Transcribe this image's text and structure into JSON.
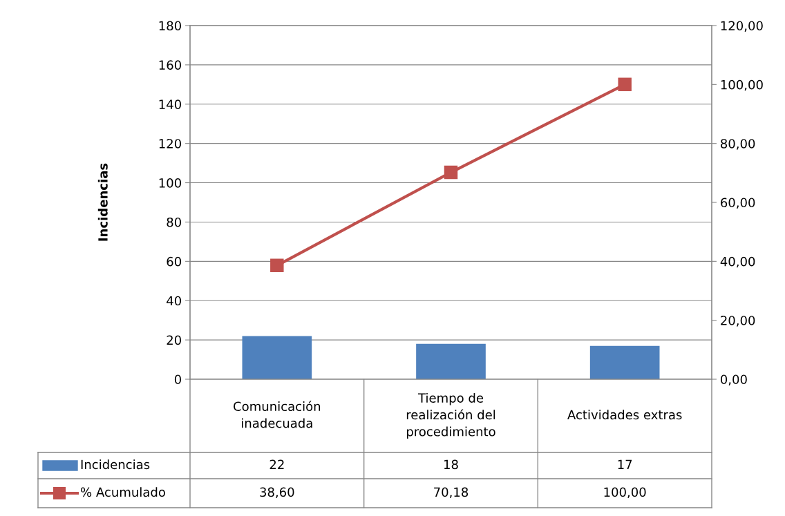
{
  "chart_data": {
    "type": "bar",
    "ylabel": "Incidencias",
    "categories": [
      "Comunicación\ninadecuada",
      "Tiempo de\nrealización del\nprocedimiento",
      "Actividades extras"
    ],
    "series": [
      {
        "name": "Incidencias",
        "color": "#4f81bd",
        "values": [
          22,
          18,
          17
        ],
        "value_labels": [
          "22",
          "18",
          "17"
        ]
      },
      {
        "name": "% Acumulado",
        "type": "line",
        "axis": "y2",
        "color": "#c0504d",
        "marker": "square",
        "values": [
          38.6,
          70.18,
          100.0
        ],
        "value_labels": [
          "38,60",
          "70,18",
          "100,00"
        ]
      }
    ],
    "ylim": [
      0,
      180
    ],
    "yticks": [
      0,
      20,
      40,
      60,
      80,
      100,
      120,
      140,
      160,
      180
    ],
    "y2lim": [
      0,
      120
    ],
    "y2ticks": [
      {
        "value": 0,
        "label": "0,00"
      },
      {
        "value": 20,
        "label": "20,00"
      },
      {
        "value": 40,
        "label": "40,00"
      },
      {
        "value": 60,
        "label": "60,00"
      },
      {
        "value": 80,
        "label": "80,00"
      },
      {
        "value": 100,
        "label": "100,00"
      },
      {
        "value": 120,
        "label": "120,00"
      }
    ],
    "grid": "y",
    "legend": "bottom"
  }
}
